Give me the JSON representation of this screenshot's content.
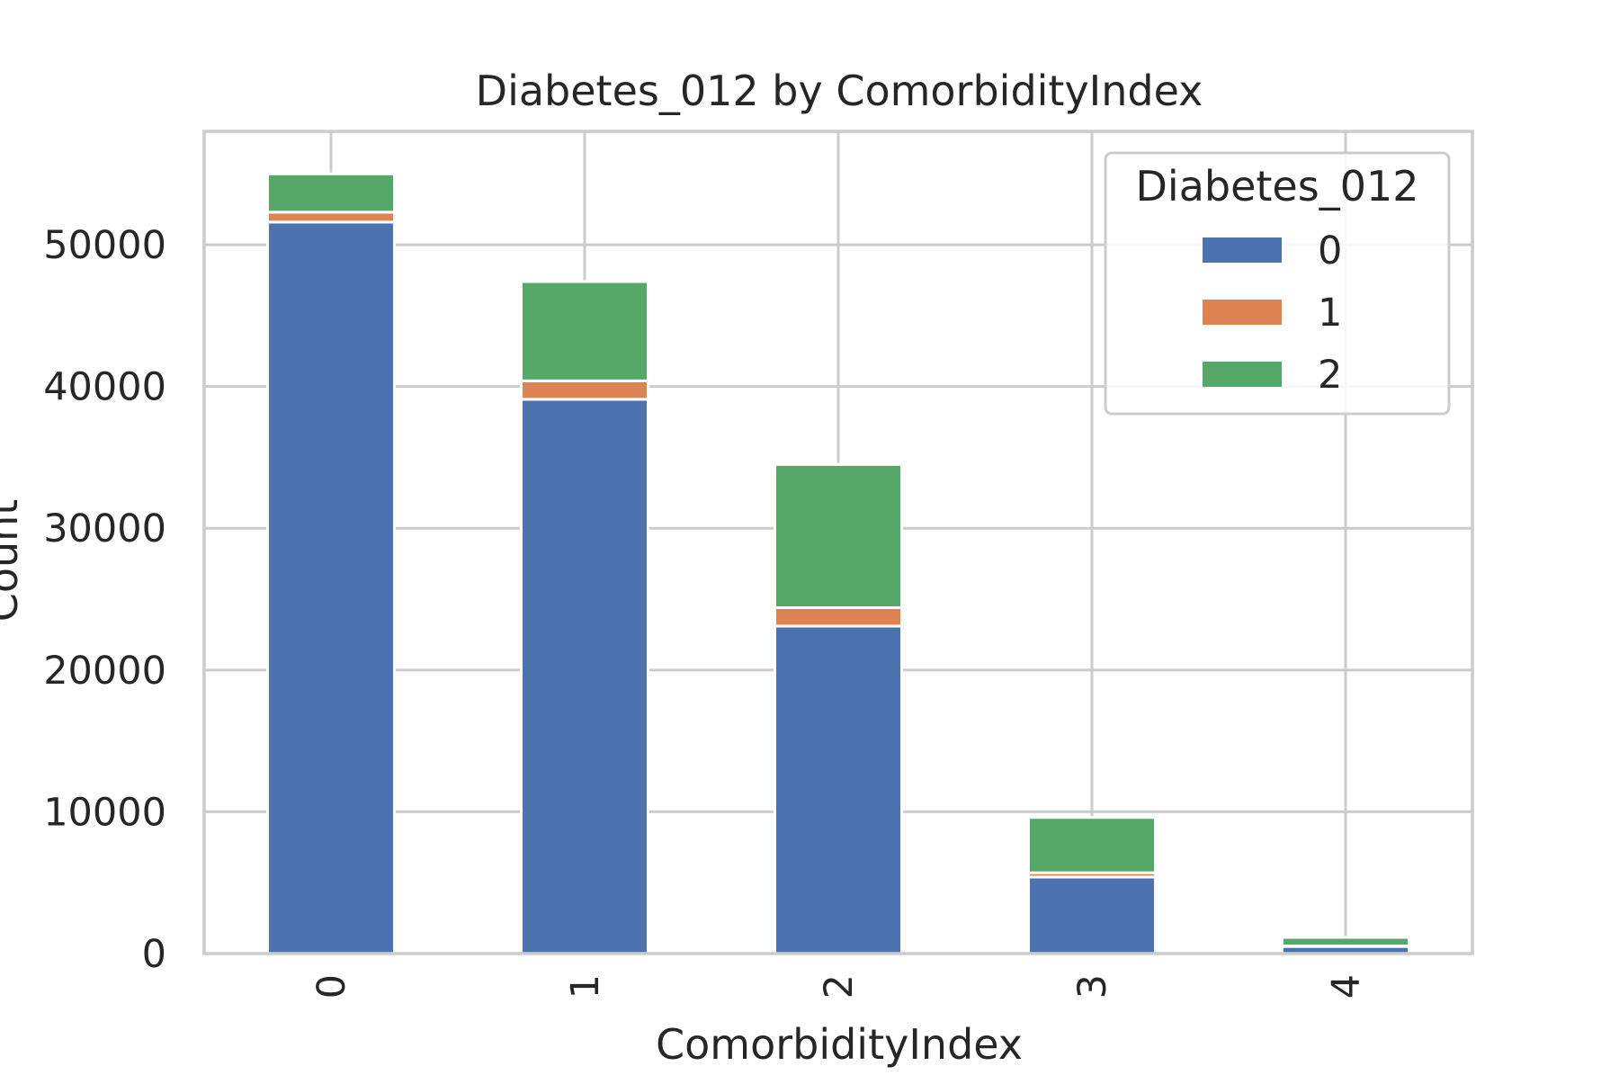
{
  "chart_data": {
    "type": "bar",
    "stacked": true,
    "title": "Diabetes_012 by ComorbidityIndex",
    "xlabel": "ComorbidityIndex",
    "ylabel": "Count",
    "categories": [
      "0",
      "1",
      "2",
      "3",
      "4"
    ],
    "series": [
      {
        "name": "0",
        "color": "#4c72b0",
        "values": [
          51600,
          39100,
          23100,
          5400,
          500
        ]
      },
      {
        "name": "1",
        "color": "#dd8452",
        "values": [
          700,
          1300,
          1300,
          300,
          40
        ]
      },
      {
        "name": "2",
        "color": "#55a868",
        "values": [
          2700,
          7000,
          10100,
          3900,
          600
        ]
      }
    ],
    "ylim": [
      0,
      58000
    ],
    "yticks": [
      0,
      10000,
      20000,
      30000,
      40000,
      50000
    ],
    "ytick_labels": [
      "0",
      "10000",
      "20000",
      "30000",
      "40000",
      "50000"
    ],
    "grid": true,
    "legend": {
      "title": "Diabetes_012",
      "position": "top-right"
    }
  }
}
